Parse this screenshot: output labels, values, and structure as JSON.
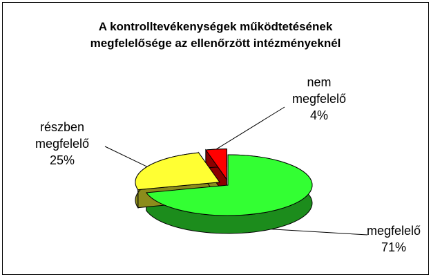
{
  "chart_data": {
    "type": "pie",
    "title": "A kontrolltevékenységek működtetésének megfelelősége az ellenőrzött intézményeknél",
    "categories": [
      "megfelelő",
      "részben megfelelő",
      "nem megfelelő"
    ],
    "values": [
      71,
      25,
      4
    ],
    "value_labels": [
      "71%",
      "25%",
      "4%"
    ],
    "colors": [
      "#33ff33",
      "#ffff33",
      "#ff0000"
    ]
  }
}
